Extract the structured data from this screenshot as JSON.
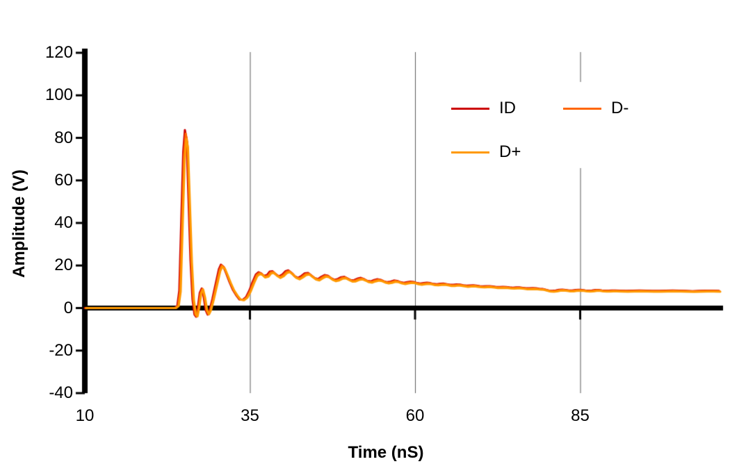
{
  "chart_data": {
    "type": "line",
    "title": "",
    "xlabel": "Time (nS)",
    "ylabel": "Amplitude (V)",
    "xlim": [
      10,
      106
    ],
    "ylim": [
      -40,
      120
    ],
    "x_ticks": [
      10,
      35,
      60,
      85
    ],
    "y_ticks": [
      120,
      100,
      80,
      60,
      40,
      20,
      0,
      -20,
      -40
    ],
    "gridlines": {
      "vertical_at": [
        35,
        60,
        85
      ],
      "horizontal": false
    },
    "legend_position": "top-right-inside",
    "axis_color": "#000000",
    "gridline_color": "#595959",
    "series": [
      {
        "name": "ID",
        "color": "#cc0000",
        "value_scale": 1.02,
        "x_shift": 0.0
      },
      {
        "name": "D-",
        "color": "#ff6600",
        "value_scale": 1.0,
        "x_shift": 0.12
      },
      {
        "name": "D+",
        "color": "#ff9900",
        "value_scale": 0.97,
        "x_shift": 0.22
      }
    ],
    "base_points": [
      [
        10,
        0
      ],
      [
        12,
        0
      ],
      [
        14,
        0
      ],
      [
        16,
        0
      ],
      [
        18,
        0
      ],
      [
        20,
        0
      ],
      [
        22,
        0
      ],
      [
        23.6,
        0
      ],
      [
        24.0,
        1
      ],
      [
        24.3,
        8
      ],
      [
        24.6,
        40
      ],
      [
        24.9,
        72
      ],
      [
        25.15,
        82
      ],
      [
        25.4,
        78
      ],
      [
        25.7,
        50
      ],
      [
        26.0,
        22
      ],
      [
        26.3,
        4
      ],
      [
        26.6,
        -3
      ],
      [
        26.85,
        -4
      ],
      [
        27.1,
        0
      ],
      [
        27.4,
        7
      ],
      [
        27.7,
        9
      ],
      [
        28.0,
        5
      ],
      [
        28.3,
        -1
      ],
      [
        28.6,
        -3
      ],
      [
        28.9,
        -1
      ],
      [
        29.3,
        4
      ],
      [
        29.8,
        11
      ],
      [
        30.3,
        18
      ],
      [
        30.6,
        20
      ],
      [
        31.0,
        19
      ],
      [
        31.4,
        16
      ],
      [
        31.9,
        12
      ],
      [
        32.4,
        8.5
      ],
      [
        32.9,
        6
      ],
      [
        33.4,
        4
      ],
      [
        33.9,
        3.8
      ],
      [
        34.4,
        5
      ],
      [
        34.9,
        8
      ],
      [
        35.4,
        12
      ],
      [
        35.9,
        15.5
      ],
      [
        36.3,
        16.5
      ],
      [
        36.7,
        16
      ],
      [
        37.1,
        14.8
      ],
      [
        37.6,
        15.2
      ],
      [
        38.0,
        16.8
      ],
      [
        38.4,
        17
      ],
      [
        38.9,
        15.6
      ],
      [
        39.4,
        14.6
      ],
      [
        39.9,
        15.4
      ],
      [
        40.4,
        17
      ],
      [
        40.8,
        17.4
      ],
      [
        41.3,
        16.2
      ],
      [
        41.8,
        14.6
      ],
      [
        42.3,
        13.9
      ],
      [
        42.8,
        14.8
      ],
      [
        43.3,
        16
      ],
      [
        43.8,
        16.2
      ],
      [
        44.3,
        15
      ],
      [
        44.8,
        13.8
      ],
      [
        45.3,
        13.4
      ],
      [
        45.8,
        14.4
      ],
      [
        46.3,
        15.2
      ],
      [
        46.8,
        14.9
      ],
      [
        47.3,
        13.7
      ],
      [
        47.8,
        13.0
      ],
      [
        48.3,
        13.4
      ],
      [
        48.8,
        14.2
      ],
      [
        49.3,
        14.4
      ],
      [
        49.8,
        13.6
      ],
      [
        50.3,
        12.8
      ],
      [
        50.8,
        12.9
      ],
      [
        51.3,
        13.6
      ],
      [
        51.8,
        13.9
      ],
      [
        52.3,
        13.3
      ],
      [
        52.8,
        12.5
      ],
      [
        53.3,
        12.3
      ],
      [
        53.8,
        12.9
      ],
      [
        54.3,
        13.3
      ],
      [
        54.8,
        13.0
      ],
      [
        55.3,
        12.3
      ],
      [
        55.8,
        11.9
      ],
      [
        56.3,
        12.2
      ],
      [
        56.8,
        12.7
      ],
      [
        57.3,
        12.5
      ],
      [
        57.8,
        11.9
      ],
      [
        58.3,
        11.6
      ],
      [
        58.8,
        11.9
      ],
      [
        59.3,
        12.2
      ],
      [
        59.8,
        12.0
      ],
      [
        60.3,
        11.5
      ],
      [
        60.8,
        11.3
      ],
      [
        61.3,
        11.5
      ],
      [
        61.8,
        11.7
      ],
      [
        62.3,
        11.5
      ],
      [
        62.8,
        11.1
      ],
      [
        63.3,
        11.0
      ],
      [
        63.8,
        11.2
      ],
      [
        64.3,
        11.3
      ],
      [
        64.8,
        11.0
      ],
      [
        65.3,
        10.7
      ],
      [
        65.8,
        10.7
      ],
      [
        66.3,
        10.9
      ],
      [
        66.8,
        10.8
      ],
      [
        67.3,
        10.5
      ],
      [
        67.8,
        10.3
      ],
      [
        68.3,
        10.4
      ],
      [
        68.8,
        10.5
      ],
      [
        69.3,
        10.3
      ],
      [
        69.8,
        10.1
      ],
      [
        70.3,
        10.0
      ],
      [
        70.8,
        10.1
      ],
      [
        71.3,
        10.1
      ],
      [
        71.8,
        9.9
      ],
      [
        72.3,
        9.7
      ],
      [
        72.8,
        9.7
      ],
      [
        73.3,
        9.8
      ],
      [
        73.8,
        9.7
      ],
      [
        74.3,
        9.5
      ],
      [
        74.8,
        9.4
      ],
      [
        75.3,
        9.5
      ],
      [
        75.8,
        9.5
      ],
      [
        76.3,
        9.3
      ],
      [
        76.8,
        9.1
      ],
      [
        77.3,
        9.1
      ],
      [
        77.8,
        9.2
      ],
      [
        78.3,
        9.1
      ],
      [
        78.8,
        8.9
      ],
      [
        79.3,
        8.8
      ],
      [
        79.8,
        8.4
      ],
      [
        80.3,
        8.0
      ],
      [
        80.8,
        7.9
      ],
      [
        81.3,
        8.1
      ],
      [
        81.8,
        8.4
      ],
      [
        82.3,
        8.5
      ],
      [
        82.8,
        8.3
      ],
      [
        83.3,
        8.1
      ],
      [
        83.8,
        8.1
      ],
      [
        84.3,
        8.3
      ],
      [
        84.8,
        8.4
      ],
      [
        85.3,
        8.3
      ],
      [
        85.8,
        8.1
      ],
      [
        86.3,
        8.0
      ],
      [
        86.8,
        8.1
      ],
      [
        87.3,
        8.3
      ],
      [
        87.8,
        8.3
      ],
      [
        88.3,
        8.1
      ],
      [
        88.8,
        8.0
      ],
      [
        89.3,
        8.0
      ],
      [
        89.8,
        8.1
      ],
      [
        90.3,
        8.1
      ],
      [
        91,
        8.0
      ],
      [
        92,
        7.9
      ],
      [
        93,
        8.0
      ],
      [
        94,
        8.1
      ],
      [
        95,
        8.0
      ],
      [
        96,
        7.9
      ],
      [
        97,
        7.9
      ],
      [
        98,
        8.0
      ],
      [
        99,
        8.1
      ],
      [
        100,
        8.0
      ],
      [
        101,
        7.9
      ],
      [
        102,
        7.8
      ],
      [
        103,
        7.9
      ],
      [
        104,
        8.0
      ],
      [
        105,
        8.0
      ],
      [
        106,
        7.9
      ]
    ]
  }
}
